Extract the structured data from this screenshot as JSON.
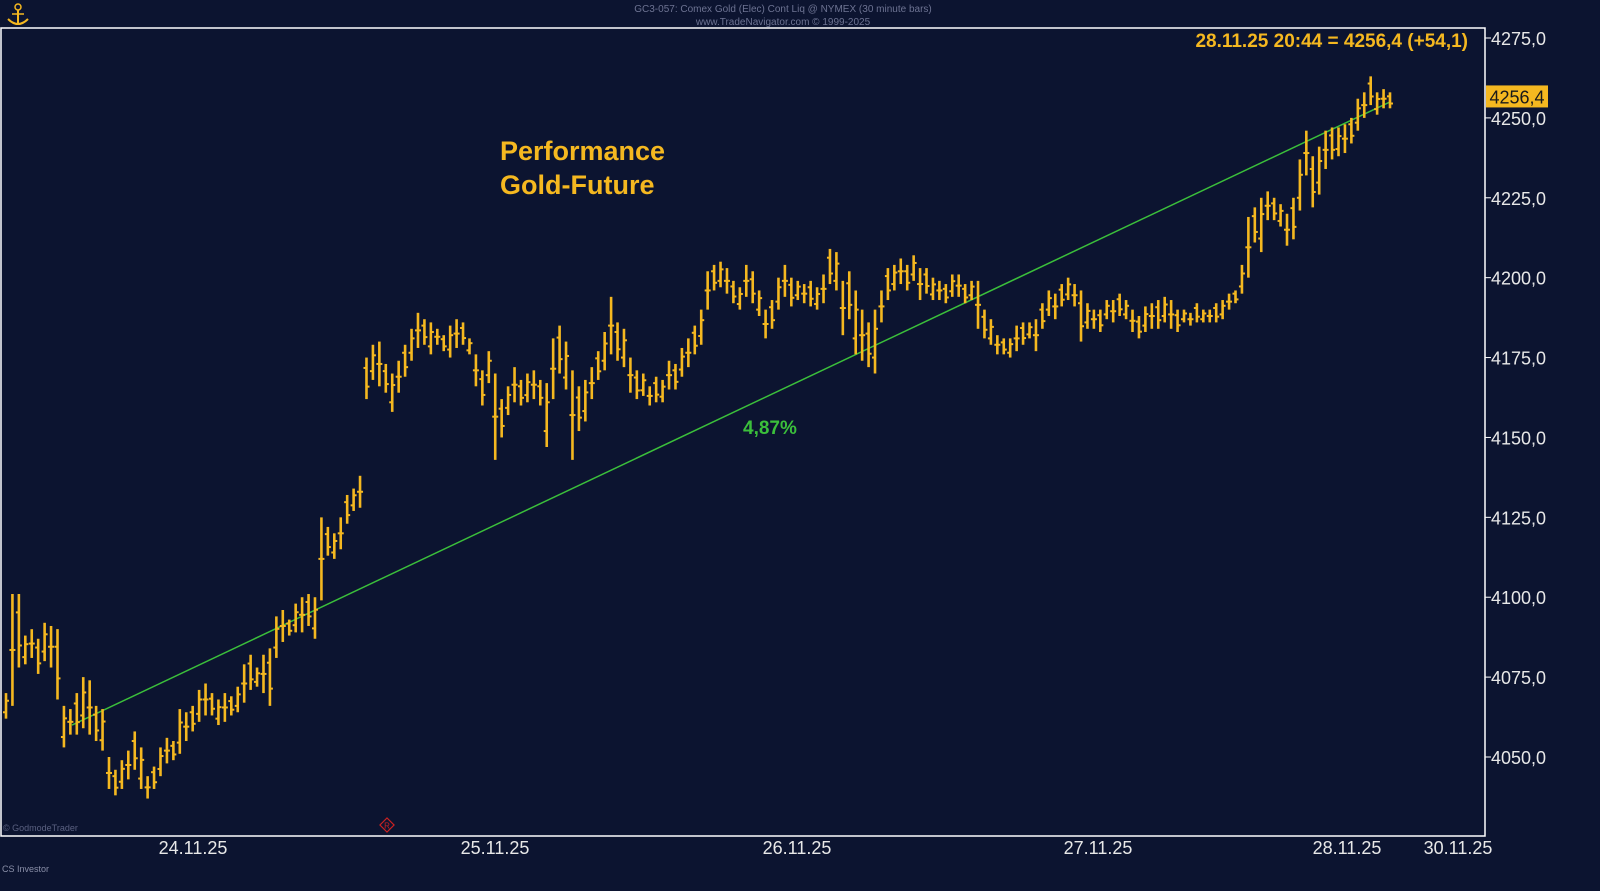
{
  "header": {
    "line1": "GC3-057: Comex Gold (Elec) Cont Liq @ NYMEX (30 minute bars)",
    "line2": "www.TradeNavigator.com © 1999-2025"
  },
  "watermark_left": "© GodmodeTrader",
  "watermark_bottom": "CS Investor",
  "colors": {
    "background": "#0c1430",
    "bars": "#f5b820",
    "trend": "#3bbf3b",
    "axis_text": "#e8e8e8",
    "frame": "#ffffff"
  },
  "chart_data": {
    "type": "ohlc",
    "title": "Performance",
    "subtitle": "Gold-Future",
    "last_quote": "28.11.25 20:44 = 4256,4 (+54,1)",
    "last_value_label": "4256,4",
    "last_value": 4256.4,
    "annotation": "4,87%",
    "y_axis": {
      "range": [
        4025,
        4277
      ],
      "ticks": [
        4050,
        4075,
        4100,
        4125,
        4150,
        4175,
        4200,
        4225,
        4250,
        4275
      ],
      "tick_labels": [
        "4050,0",
        "4075,0",
        "4100,0",
        "4125,0",
        "4150,0",
        "4175,0",
        "4200,0",
        "4225,0",
        "4250,0",
        "4275,0"
      ]
    },
    "x_axis": {
      "tick_labels": [
        "24.11.25",
        "25.11.25",
        "26.11.25",
        "27.11.25",
        "28.11.25",
        "30.11.25"
      ]
    },
    "trend_line": {
      "start": 4060,
      "end": 4255
    },
    "bars": [
      {
        "h": 4070,
        "l": 4062
      },
      {
        "h": 4101,
        "l": 4066
      },
      {
        "h": 4101,
        "l": 4078
      },
      {
        "h": 4088,
        "l": 4079
      },
      {
        "h": 4090,
        "l": 4081
      },
      {
        "h": 4087,
        "l": 4076
      },
      {
        "h": 4092,
        "l": 4080
      },
      {
        "h": 4091,
        "l": 4078
      },
      {
        "h": 4090,
        "l": 4068
      },
      {
        "h": 4066,
        "l": 4053
      },
      {
        "h": 4065,
        "l": 4057
      },
      {
        "h": 4070,
        "l": 4057
      },
      {
        "h": 4075,
        "l": 4059
      },
      {
        "h": 4074,
        "l": 4057
      },
      {
        "h": 4066,
        "l": 4055
      },
      {
        "h": 4065,
        "l": 4052
      },
      {
        "h": 4050,
        "l": 4040
      },
      {
        "h": 4046,
        "l": 4038
      },
      {
        "h": 4049,
        "l": 4040
      },
      {
        "h": 4052,
        "l": 4043
      },
      {
        "h": 4058,
        "l": 4046
      },
      {
        "h": 4053,
        "l": 4040
      },
      {
        "h": 4044,
        "l": 4037
      },
      {
        "h": 4047,
        "l": 4040
      },
      {
        "h": 4053,
        "l": 4044
      },
      {
        "h": 4056,
        "l": 4048
      },
      {
        "h": 4055,
        "l": 4049
      },
      {
        "h": 4065,
        "l": 4051
      },
      {
        "h": 4064,
        "l": 4055
      },
      {
        "h": 4066,
        "l": 4058
      },
      {
        "h": 4071,
        "l": 4061
      },
      {
        "h": 4073,
        "l": 4063
      },
      {
        "h": 4070,
        "l": 4063
      },
      {
        "h": 4068,
        "l": 4060
      },
      {
        "h": 4070,
        "l": 4061
      },
      {
        "h": 4069,
        "l": 4063
      },
      {
        "h": 4072,
        "l": 4064
      },
      {
        "h": 4079,
        "l": 4067
      },
      {
        "h": 4082,
        "l": 4071
      },
      {
        "h": 4078,
        "l": 4072
      },
      {
        "h": 4082,
        "l": 4070
      },
      {
        "h": 4084,
        "l": 4066
      },
      {
        "h": 4094,
        "l": 4081
      },
      {
        "h": 4096,
        "l": 4086
      },
      {
        "h": 4093,
        "l": 4088
      },
      {
        "h": 4098,
        "l": 4089
      },
      {
        "h": 4100,
        "l": 4089
      },
      {
        "h": 4101,
        "l": 4091
      },
      {
        "h": 4100,
        "l": 4087
      },
      {
        "h": 4125,
        "l": 4099
      },
      {
        "h": 4122,
        "l": 4113
      },
      {
        "h": 4120,
        "l": 4112
      },
      {
        "h": 4125,
        "l": 4115
      },
      {
        "h": 4132,
        "l": 4123
      },
      {
        "h": 4134,
        "l": 4127
      },
      {
        "h": 4138,
        "l": 4128
      },
      {
        "h": 4175,
        "l": 4162
      },
      {
        "h": 4179,
        "l": 4168
      },
      {
        "h": 4180,
        "l": 4166
      },
      {
        "h": 4173,
        "l": 4164
      },
      {
        "h": 4170,
        "l": 4158
      },
      {
        "h": 4174,
        "l": 4164
      },
      {
        "h": 4179,
        "l": 4169
      },
      {
        "h": 4184,
        "l": 4174
      },
      {
        "h": 4189,
        "l": 4178
      },
      {
        "h": 4187,
        "l": 4179
      },
      {
        "h": 4186,
        "l": 4176
      },
      {
        "h": 4184,
        "l": 4179
      },
      {
        "h": 4182,
        "l": 4177
      },
      {
        "h": 4185,
        "l": 4175
      },
      {
        "h": 4187,
        "l": 4178
      },
      {
        "h": 4186,
        "l": 4179
      },
      {
        "h": 4181,
        "l": 4176
      },
      {
        "h": 4176,
        "l": 4166
      },
      {
        "h": 4171,
        "l": 4160
      },
      {
        "h": 4177,
        "l": 4167
      },
      {
        "h": 4170,
        "l": 4143
      },
      {
        "h": 4162,
        "l": 4150
      },
      {
        "h": 4166,
        "l": 4157
      },
      {
        "h": 4172,
        "l": 4161
      },
      {
        "h": 4168,
        "l": 4160
      },
      {
        "h": 4170,
        "l": 4161
      },
      {
        "h": 4171,
        "l": 4162
      },
      {
        "h": 4168,
        "l": 4160
      },
      {
        "h": 4167,
        "l": 4147
      },
      {
        "h": 4181,
        "l": 4162
      },
      {
        "h": 4185,
        "l": 4170
      },
      {
        "h": 4180,
        "l": 4165
      },
      {
        "h": 4171,
        "l": 4143
      },
      {
        "h": 4166,
        "l": 4152
      },
      {
        "h": 4168,
        "l": 4155
      },
      {
        "h": 4172,
        "l": 4162
      },
      {
        "h": 4177,
        "l": 4168
      },
      {
        "h": 4183,
        "l": 4171
      },
      {
        "h": 4194,
        "l": 4176
      },
      {
        "h": 4186,
        "l": 4174
      },
      {
        "h": 4184,
        "l": 4172
      },
      {
        "h": 4175,
        "l": 4164
      },
      {
        "h": 4171,
        "l": 4162
      },
      {
        "h": 4170,
        "l": 4163
      },
      {
        "h": 4166,
        "l": 4160
      },
      {
        "h": 4169,
        "l": 4161
      },
      {
        "h": 4168,
        "l": 4161
      },
      {
        "h": 4174,
        "l": 4165
      },
      {
        "h": 4173,
        "l": 4165
      },
      {
        "h": 4178,
        "l": 4169
      },
      {
        "h": 4181,
        "l": 4172
      },
      {
        "h": 4185,
        "l": 4176
      },
      {
        "h": 4190,
        "l": 4179
      },
      {
        "h": 4202,
        "l": 4190
      },
      {
        "h": 4204,
        "l": 4196
      },
      {
        "h": 4205,
        "l": 4197
      },
      {
        "h": 4203,
        "l": 4195
      },
      {
        "h": 4199,
        "l": 4192
      },
      {
        "h": 4197,
        "l": 4190
      },
      {
        "h": 4204,
        "l": 4194
      },
      {
        "h": 4202,
        "l": 4192
      },
      {
        "h": 4196,
        "l": 4188
      },
      {
        "h": 4190,
        "l": 4181
      },
      {
        "h": 4193,
        "l": 4184
      },
      {
        "h": 4200,
        "l": 4190
      },
      {
        "h": 4204,
        "l": 4194
      },
      {
        "h": 4200,
        "l": 4191
      },
      {
        "h": 4199,
        "l": 4193
      },
      {
        "h": 4198,
        "l": 4192
      },
      {
        "h": 4199,
        "l": 4191
      },
      {
        "h": 4197,
        "l": 4190
      },
      {
        "h": 4201,
        "l": 4192
      },
      {
        "h": 4209,
        "l": 4198
      },
      {
        "h": 4208,
        "l": 4196
      },
      {
        "h": 4199,
        "l": 4182
      },
      {
        "h": 4202,
        "l": 4187
      },
      {
        "h": 4196,
        "l": 4176
      },
      {
        "h": 4190,
        "l": 4174
      },
      {
        "h": 4186,
        "l": 4172
      },
      {
        "h": 4190,
        "l": 4170
      },
      {
        "h": 4196,
        "l": 4186
      },
      {
        "h": 4203,
        "l": 4193
      },
      {
        "h": 4204,
        "l": 4196
      },
      {
        "h": 4206,
        "l": 4198
      },
      {
        "h": 4204,
        "l": 4196
      },
      {
        "h": 4207,
        "l": 4199
      },
      {
        "h": 4203,
        "l": 4193
      },
      {
        "h": 4203,
        "l": 4195
      },
      {
        "h": 4200,
        "l": 4193
      },
      {
        "h": 4199,
        "l": 4193
      },
      {
        "h": 4198,
        "l": 4192
      },
      {
        "h": 4201,
        "l": 4194
      },
      {
        "h": 4201,
        "l": 4194
      },
      {
        "h": 4198,
        "l": 4192
      },
      {
        "h": 4199,
        "l": 4193
      },
      {
        "h": 4199,
        "l": 4184
      },
      {
        "h": 4190,
        "l": 4181
      },
      {
        "h": 4187,
        "l": 4179
      },
      {
        "h": 4182,
        "l": 4176
      },
      {
        "h": 4181,
        "l": 4176
      },
      {
        "h": 4181,
        "l": 4175
      },
      {
        "h": 4185,
        "l": 4177
      },
      {
        "h": 4186,
        "l": 4179
      },
      {
        "h": 4186,
        "l": 4181
      },
      {
        "h": 4187,
        "l": 4177
      },
      {
        "h": 4192,
        "l": 4184
      },
      {
        "h": 4196,
        "l": 4188
      },
      {
        "h": 4195,
        "l": 4187
      },
      {
        "h": 4198,
        "l": 4191
      },
      {
        "h": 4200,
        "l": 4193
      },
      {
        "h": 4198,
        "l": 4191
      },
      {
        "h": 4196,
        "l": 4180
      },
      {
        "h": 4192,
        "l": 4184
      },
      {
        "h": 4190,
        "l": 4184
      },
      {
        "h": 4190,
        "l": 4183
      },
      {
        "h": 4193,
        "l": 4187
      },
      {
        "h": 4193,
        "l": 4186
      },
      {
        "h": 4195,
        "l": 4188
      },
      {
        "h": 4193,
        "l": 4187
      },
      {
        "h": 4190,
        "l": 4183
      },
      {
        "h": 4188,
        "l": 4181
      },
      {
        "h": 4191,
        "l": 4183
      },
      {
        "h": 4192,
        "l": 4184
      },
      {
        "h": 4193,
        "l": 4184
      },
      {
        "h": 4194,
        "l": 4186
      },
      {
        "h": 4193,
        "l": 4184
      },
      {
        "h": 4190,
        "l": 4183
      },
      {
        "h": 4190,
        "l": 4186
      },
      {
        "h": 4189,
        "l": 4185
      },
      {
        "h": 4192,
        "l": 4186
      },
      {
        "h": 4190,
        "l": 4186
      },
      {
        "h": 4190,
        "l": 4186
      },
      {
        "h": 4192,
        "l": 4186
      },
      {
        "h": 4193,
        "l": 4187
      },
      {
        "h": 4195,
        "l": 4190
      },
      {
        "h": 4196,
        "l": 4192
      },
      {
        "h": 4204,
        "l": 4195
      },
      {
        "h": 4219,
        "l": 4200
      },
      {
        "h": 4222,
        "l": 4211
      },
      {
        "h": 4225,
        "l": 4208
      },
      {
        "h": 4227,
        "l": 4218
      },
      {
        "h": 4225,
        "l": 4218
      },
      {
        "h": 4223,
        "l": 4216
      },
      {
        "h": 4220,
        "l": 4210
      },
      {
        "h": 4225,
        "l": 4212
      },
      {
        "h": 4237,
        "l": 4221
      },
      {
        "h": 4246,
        "l": 4232
      },
      {
        "h": 4238,
        "l": 4222
      },
      {
        "h": 4241,
        "l": 4226
      },
      {
        "h": 4246,
        "l": 4234
      },
      {
        "h": 4247,
        "l": 4237
      },
      {
        "h": 4247,
        "l": 4238
      },
      {
        "h": 4248,
        "l": 4239
      },
      {
        "h": 4250,
        "l": 4242
      },
      {
        "h": 4256,
        "l": 4246
      },
      {
        "h": 4258,
        "l": 4250
      },
      {
        "h": 4263,
        "l": 4254
      },
      {
        "h": 4258,
        "l": 4251
      },
      {
        "h": 4259,
        "l": 4253
      },
      {
        "h": 4258,
        "l": 4253
      }
    ]
  }
}
